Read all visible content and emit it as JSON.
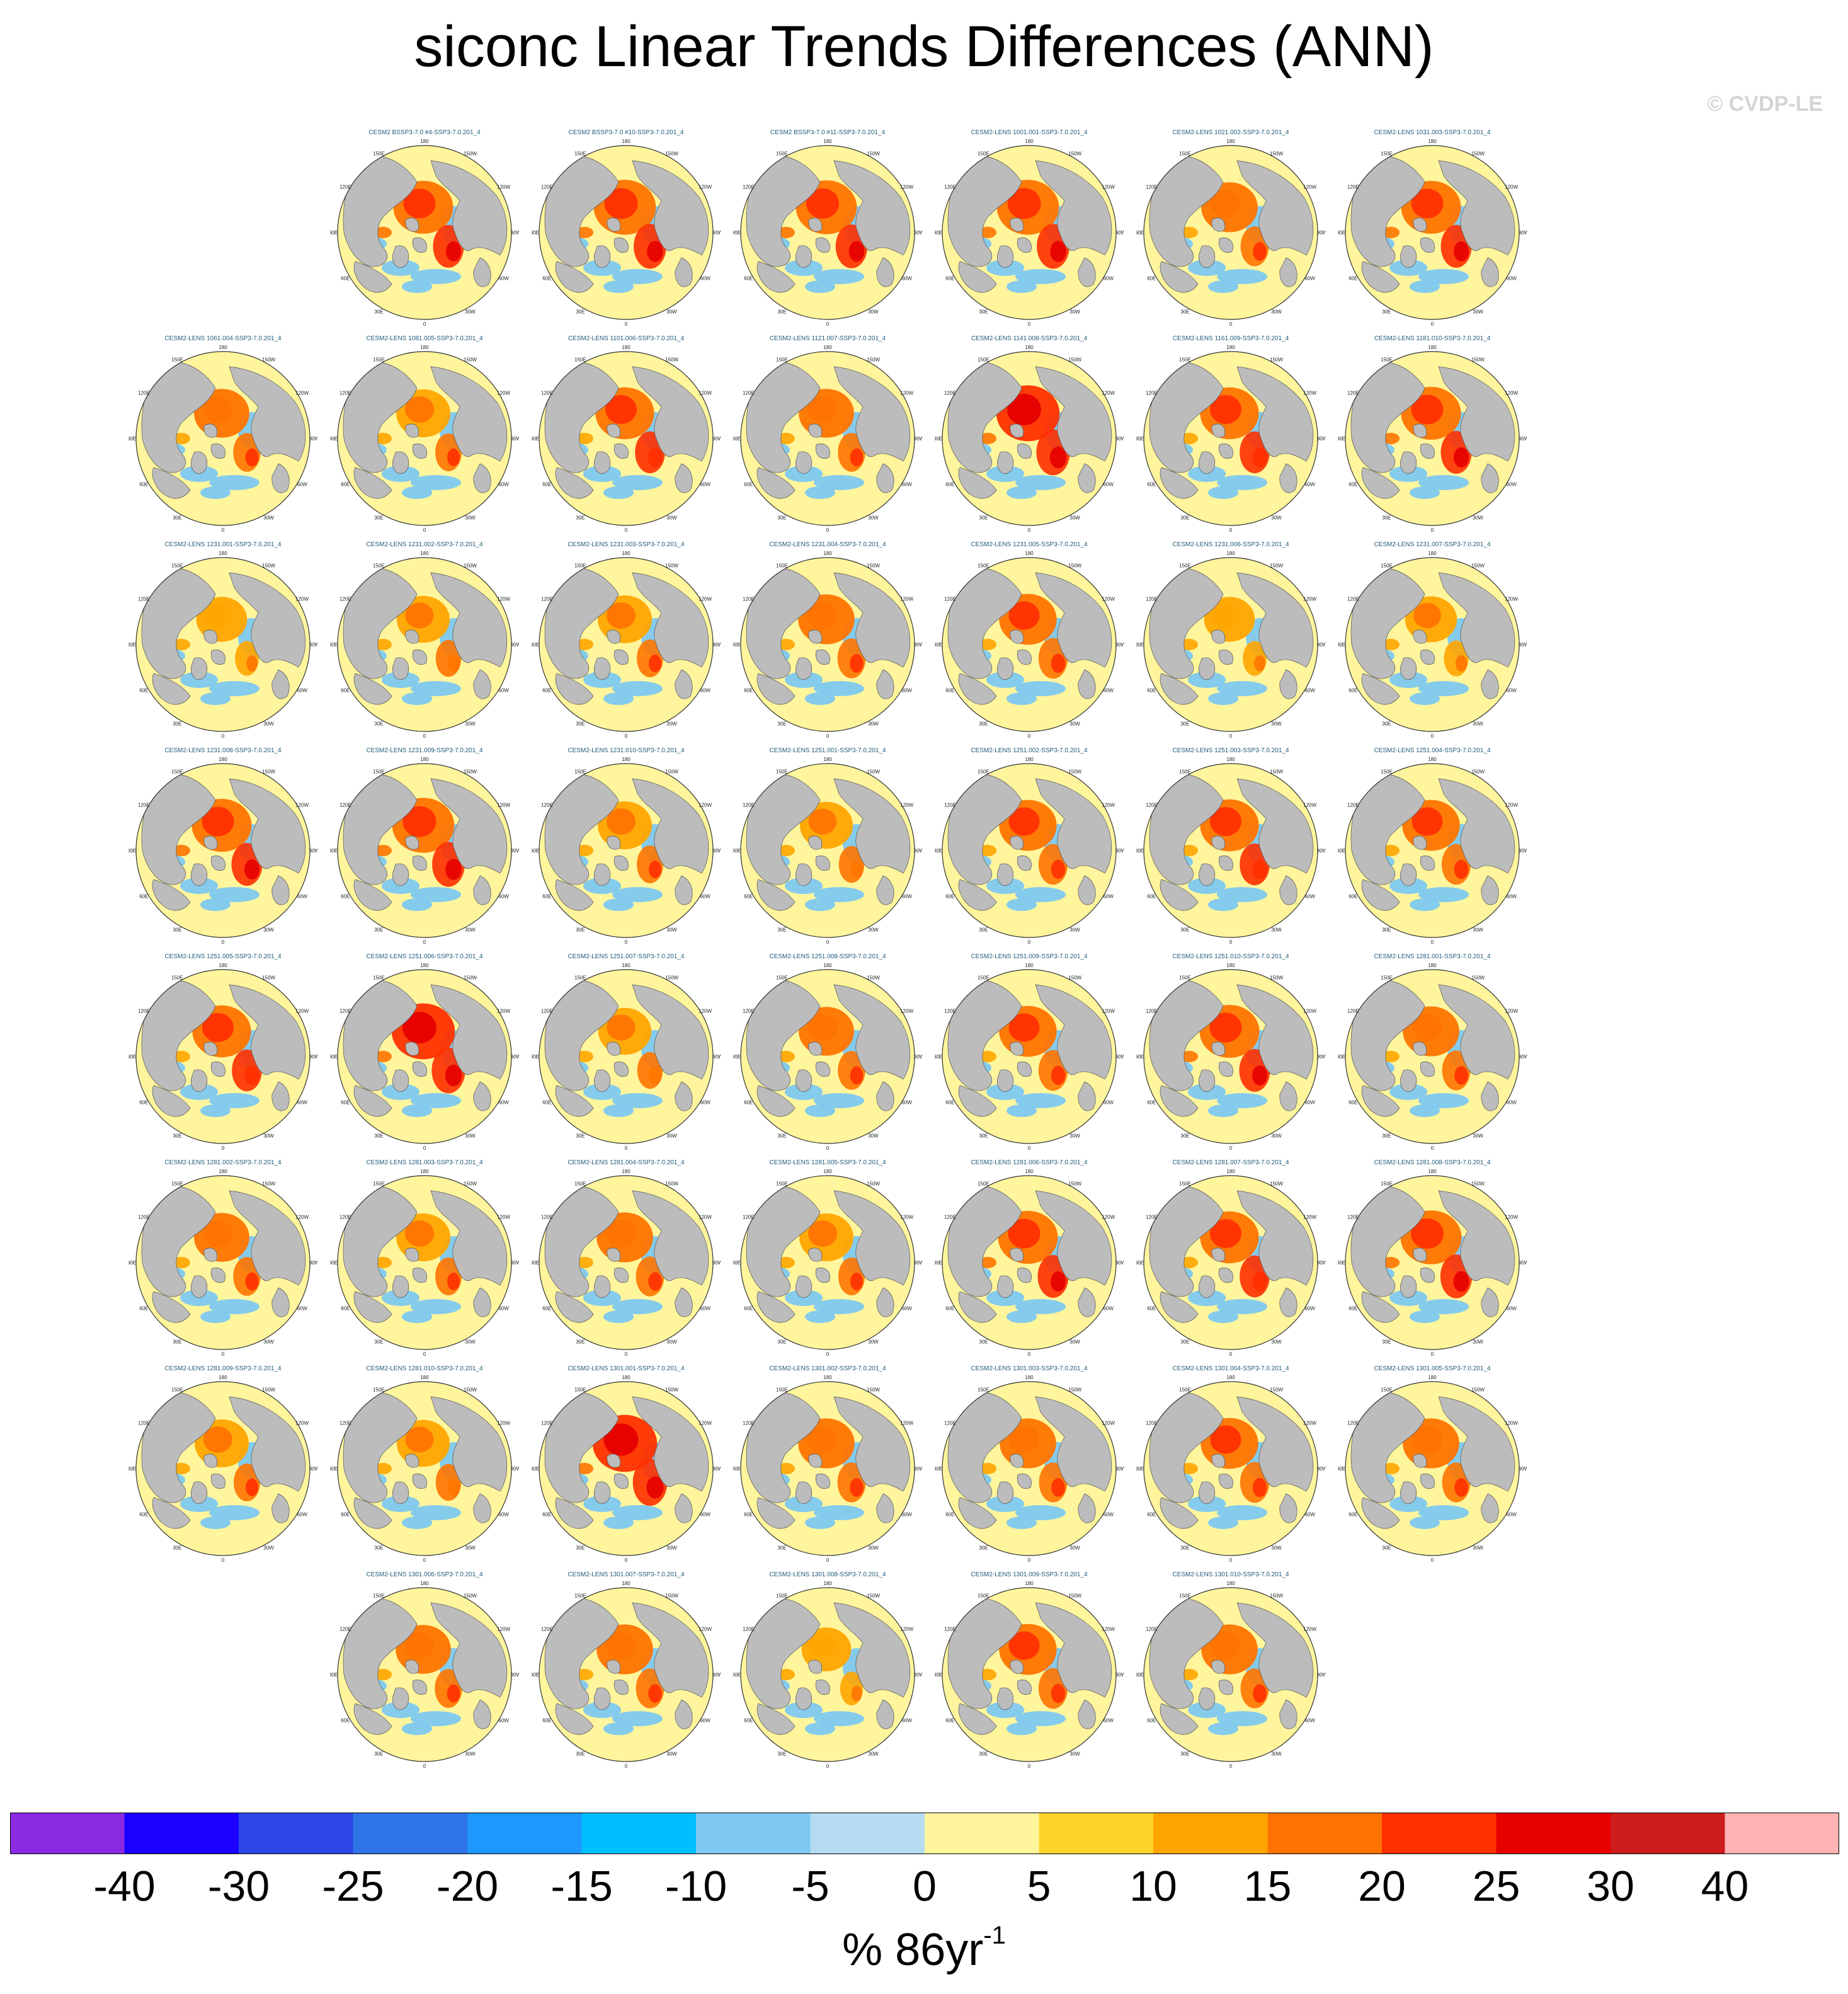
{
  "title": "siconc Linear Trends Differences (ANN)",
  "watermark": "© CVDP-LE",
  "units": {
    "base": "% 86yr",
    "exponent": "-1"
  },
  "chart_data": {
    "type": "heatmap",
    "title": "siconc Linear Trends Differences (ANN)",
    "variable": "siconc",
    "season": "ANN",
    "projection": "north-polar-stereographic",
    "map_labels": [
      "180",
      "150E",
      "120E",
      "90E",
      "60E",
      "30E",
      "0",
      "30W",
      "60W",
      "90W",
      "120W",
      "150W"
    ],
    "land_color": "#bcbcbc",
    "levels": [
      "-40",
      "-30",
      "-25",
      "-20",
      "-15",
      "-10",
      "-5",
      "0",
      "5",
      "10",
      "15",
      "20",
      "25",
      "30",
      "40"
    ],
    "colors": [
      "#8a2be2",
      "#1a00ff",
      "#2c46e6",
      "#2f74e6",
      "#1e97ff",
      "#00bfff",
      "#7ec8f0",
      "#b5dcf0",
      "#fff59d",
      "#ffd42a",
      "#ffa500",
      "#ff7400",
      "#ff3000",
      "#e60000",
      "#cc1c1c",
      "#ffb3b3"
    ],
    "panels": [
      {
        "title": "CESM2 BSSP3-7.0 #4-SSP3-7.0.201_4",
        "intensity": 0.75
      },
      {
        "title": "CESM2 BSSP3-7.0 #10-SSP3-7.0.201_4",
        "intensity": 0.85
      },
      {
        "title": "CESM2 BSSP3-7.0 #11-SSP3-7.0.201_4",
        "intensity": 0.8
      },
      {
        "title": "CESM2-LENS 1001.001-SSP3-7.0.201_4",
        "intensity": 0.85
      },
      {
        "title": "CESM2-LENS 1021.002-SSP3-7.0.201_4",
        "intensity": 0.6
      },
      {
        "title": "CESM2-LENS 1031.003-SSP3-7.0.201_4",
        "intensity": 0.75
      },
      {
        "title": "CESM2-LENS 1061.004-SSP3-7.0.201_4",
        "intensity": 0.55
      },
      {
        "title": "CESM2-LENS 1081.005-SSP3-7.0.201_4",
        "intensity": 0.5
      },
      {
        "title": "CESM2-LENS 1101.006-SSP3-7.0.201_4",
        "intensity": 0.7
      },
      {
        "title": "CESM2-LENS 1121.007-SSP3-7.0.201_4",
        "intensity": 0.55
      },
      {
        "title": "CESM2-LENS 1141.008-SSP3-7.0.201_4",
        "intensity": 0.9
      },
      {
        "title": "CESM2-LENS 1161.009-SSP3-7.0.201_4",
        "intensity": 0.7
      },
      {
        "title": "CESM2-LENS 1181.010-SSP3-7.0.201_4",
        "intensity": 0.75
      },
      {
        "title": "CESM2-LENS 1231.001-SSP3-7.0.201_4",
        "intensity": 0.35
      },
      {
        "title": "CESM2-LENS 1231.002-SSP3-7.0.201_4",
        "intensity": 0.45
      },
      {
        "title": "CESM2-LENS 1231.003-SSP3-7.0.201_4",
        "intensity": 0.5
      },
      {
        "title": "CESM2-LENS 1231.004-SSP3-7.0.201_4",
        "intensity": 0.6
      },
      {
        "title": "CESM2-LENS 1231.005-SSP3-7.0.201_4",
        "intensity": 0.65
      },
      {
        "title": "CESM2-LENS 1231.006-SSP3-7.0.201_4",
        "intensity": 0.35
      },
      {
        "title": "CESM2-LENS 1231.007-SSP3-7.0.201_4",
        "intensity": 0.4
      },
      {
        "title": "CESM2-LENS 1231.008-SSP3-7.0.201_4",
        "intensity": 0.75
      },
      {
        "title": "CESM2-LENS 1231.009-SSP3-7.0.201_4",
        "intensity": 0.85
      },
      {
        "title": "CESM2-LENS 1231.010-SSP3-7.0.201_4",
        "intensity": 0.5
      },
      {
        "title": "CESM2-LENS 1251.001-SSP3-7.0.201_4",
        "intensity": 0.45
      },
      {
        "title": "CESM2-LENS 1251.002-SSP3-7.0.201_4",
        "intensity": 0.65
      },
      {
        "title": "CESM2-LENS 1251.003-SSP3-7.0.201_4",
        "intensity": 0.7
      },
      {
        "title": "CESM2-LENS 1251.004-SSP3-7.0.201_4",
        "intensity": 0.65
      },
      {
        "title": "CESM2-LENS 1251.005-SSP3-7.0.201_4",
        "intensity": 0.7
      },
      {
        "title": "CESM2-LENS 1251.006-SSP3-7.0.201_4",
        "intensity": 0.9
      },
      {
        "title": "CESM2-LENS 1251.007-SSP3-7.0.201_4",
        "intensity": 0.45
      },
      {
        "title": "CESM2-LENS 1251.008-SSP3-7.0.201_4",
        "intensity": 0.55
      },
      {
        "title": "CESM2-LENS 1251.009-SSP3-7.0.201_4",
        "intensity": 0.65
      },
      {
        "title": "CESM2-LENS 1251.010-SSP3-7.0.201_4",
        "intensity": 0.75
      },
      {
        "title": "CESM2-LENS 1281.001-SSP3-7.0.201_4",
        "intensity": 0.6
      },
      {
        "title": "CESM2-LENS 1281.002-SSP3-7.0.201_4",
        "intensity": 0.55
      },
      {
        "title": "CESM2-LENS 1281.003-SSP3-7.0.201_4",
        "intensity": 0.5
      },
      {
        "title": "CESM2-LENS 1281.004-SSP3-7.0.201_4",
        "intensity": 0.6
      },
      {
        "title": "CESM2-LENS 1281.005-SSP3-7.0.201_4",
        "intensity": 0.5
      },
      {
        "title": "CESM2-LENS 1281.006-SSP3-7.0.201_4",
        "intensity": 0.75
      },
      {
        "title": "CESM2-LENS 1281.007-SSP3-7.0.201_4",
        "intensity": 0.7
      },
      {
        "title": "CESM2-LENS 1281.008-SSP3-7.0.201_4",
        "intensity": 0.8
      },
      {
        "title": "CESM2-LENS 1281.009-SSP3-7.0.201_4",
        "intensity": 0.5
      },
      {
        "title": "CESM2-LENS 1281.010-SSP3-7.0.201_4",
        "intensity": 0.45
      },
      {
        "title": "CESM2-LENS 1301.001-SSP3-7.0.201_4",
        "intensity": 0.95
      },
      {
        "title": "CESM2-LENS 1301.002-SSP3-7.0.201_4",
        "intensity": 0.6
      },
      {
        "title": "CESM2-LENS 1301.003-SSP3-7.0.201_4",
        "intensity": 0.6
      },
      {
        "title": "CESM2-LENS 1301.004-SSP3-7.0.201_4",
        "intensity": 0.65
      },
      {
        "title": "CESM2-LENS 1301.005-SSP3-7.0.201_4",
        "intensity": 0.6
      },
      {
        "title": "CESM2-LENS 1301.006-SSP3-7.0.201_4",
        "intensity": 0.55
      },
      {
        "title": "CESM2-LENS 1301.007-SSP3-7.0.201_4",
        "intensity": 0.6
      },
      {
        "title": "CESM2-LENS 1301.008-SSP3-7.0.201_4",
        "intensity": 0.3
      },
      {
        "title": "CESM2-LENS 1301.009-SSP3-7.0.201_4",
        "intensity": 0.65
      },
      {
        "title": "CESM2-LENS 1301.010-SSP3-7.0.201_4",
        "intensity": 0.6
      }
    ]
  }
}
